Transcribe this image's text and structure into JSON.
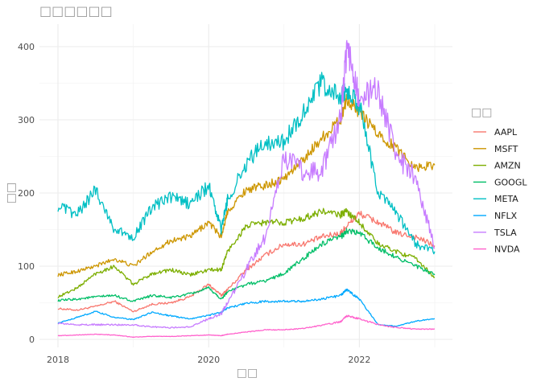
{
  "chart_data": {
    "type": "line",
    "title": "□□□□□□",
    "xlabel": "□□",
    "ylabel": "□□",
    "legend_title": "□□",
    "legend_position": "right",
    "grid": true,
    "x_ticks": [
      "2018",
      "2020",
      "2022"
    ],
    "y_ticks": [
      "0",
      "100",
      "200",
      "300",
      "400"
    ],
    "xlim": [
      "2018-01-01",
      "2023-01-01"
    ],
    "ylim": [
      -5,
      425
    ],
    "x": [
      "2018-01",
      "2018-04",
      "2018-07",
      "2018-10",
      "2019-01",
      "2019-04",
      "2019-07",
      "2019-10",
      "2020-01",
      "2020-03",
      "2020-04",
      "2020-07",
      "2020-10",
      "2021-01",
      "2021-04",
      "2021-07",
      "2021-10",
      "2021-11",
      "2022-01",
      "2022-04",
      "2022-07",
      "2022-10",
      "2023-01"
    ],
    "series": [
      {
        "name": "AAPL",
        "color": "#F8766D",
        "values": [
          42,
          40,
          45,
          52,
          38,
          48,
          50,
          58,
          75,
          60,
          68,
          95,
          115,
          130,
          130,
          140,
          145,
          155,
          172,
          160,
          145,
          140,
          128
        ]
      },
      {
        "name": "MSFT",
        "color": "#CD9600",
        "values": [
          88,
          93,
          100,
          110,
          100,
          120,
          135,
          140,
          160,
          140,
          175,
          205,
          210,
          220,
          245,
          275,
          300,
          330,
          310,
          280,
          260,
          235,
          238
        ]
      },
      {
        "name": "AMZN",
        "color": "#7CAE00",
        "values": [
          58,
          70,
          90,
          100,
          75,
          90,
          95,
          88,
          95,
          95,
          120,
          155,
          160,
          160,
          165,
          175,
          170,
          175,
          160,
          130,
          120,
          110,
          85
        ]
      },
      {
        "name": "GOOGL",
        "color": "#00BE67",
        "values": [
          53,
          55,
          58,
          60,
          52,
          60,
          57,
          62,
          70,
          55,
          65,
          75,
          80,
          90,
          110,
          130,
          140,
          148,
          145,
          125,
          112,
          100,
          88
        ]
      },
      {
        "name": "META",
        "color": "#00BFC4",
        "values": [
          182,
          170,
          205,
          150,
          140,
          180,
          195,
          185,
          210,
          150,
          190,
          240,
          270,
          270,
          310,
          350,
          330,
          340,
          320,
          200,
          170,
          130,
          120
        ]
      },
      {
        "name": "NFLX",
        "color": "#00A9FF",
        "values": [
          22,
          30,
          38,
          30,
          27,
          37,
          32,
          28,
          33,
          37,
          43,
          49,
          52,
          52,
          52,
          55,
          60,
          68,
          55,
          20,
          18,
          25,
          28
        ]
      },
      {
        "name": "TSLA",
        "color": "#C77CFF",
        "values": [
          22,
          20,
          20,
          20,
          20,
          17,
          16,
          17,
          28,
          35,
          50,
          95,
          140,
          250,
          230,
          230,
          300,
          400,
          330,
          340,
          250,
          220,
          125
        ]
      },
      {
        "name": "NVDA",
        "color": "#FF61CC",
        "values": [
          5,
          6,
          7,
          6,
          3,
          4,
          4,
          5,
          6,
          5,
          7,
          10,
          13,
          13,
          15,
          19,
          24,
          32,
          28,
          20,
          16,
          14,
          14
        ]
      }
    ]
  }
}
